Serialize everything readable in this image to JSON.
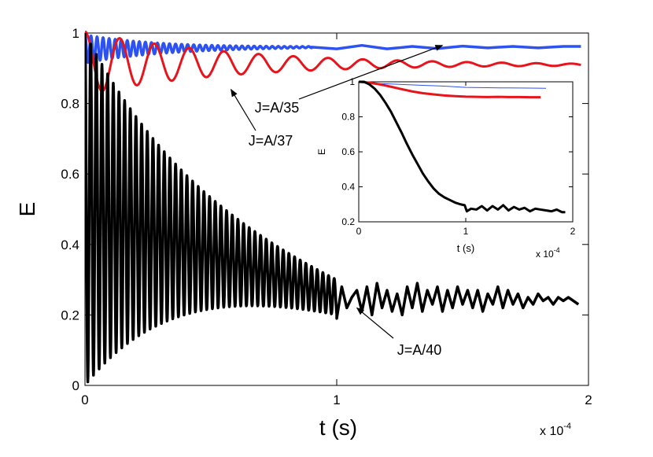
{
  "chart_data": [
    {
      "type": "line",
      "title": "",
      "xlabel": "t (s)",
      "ylabel": "E",
      "x_multiplier": "x 10",
      "x_multiplier_exp": "-4",
      "xlim": [
        0,
        2
      ],
      "ylim": [
        0,
        1
      ],
      "x_ticks": [
        "0",
        "1",
        "2"
      ],
      "y_ticks": [
        "0",
        "0.2",
        "0.4",
        "0.6",
        "0.8",
        "1"
      ],
      "grid": false,
      "series": [
        {
          "name": "J=A/35",
          "color": "#2d52f0",
          "oscillation": {
            "x_start": 0,
            "x_end": 0.9,
            "period": 0.024,
            "center_start": 0.955,
            "center_end": 0.96,
            "amp_start": 0.04,
            "amp_end": 0.002
          },
          "x": [
            0.9,
            1.0,
            1.1,
            1.2,
            1.3,
            1.4,
            1.5,
            1.6,
            1.7,
            1.8,
            1.9,
            1.97
          ],
          "values": [
            0.96,
            0.955,
            0.965,
            0.955,
            0.962,
            0.956,
            0.963,
            0.958,
            0.962,
            0.958,
            0.962,
            0.962
          ]
        },
        {
          "name": "J=A/37",
          "color": "#e8141c",
          "oscillation": {
            "x_start": 0,
            "x_end": 1.97,
            "period": 0.138,
            "center_start": 0.915,
            "center_end": 0.91,
            "amp_start": 0.09,
            "amp_end": 0.003
          },
          "x": [],
          "values": []
        },
        {
          "name": "J=A/40",
          "color": "#000000",
          "oscillation": {
            "x_start": 0,
            "x_end": 1.0,
            "period": 0.0225,
            "center_start": 0.5,
            "center_end": 0.25,
            "amp_start": 0.5,
            "amp_end": 0.05
          },
          "x": [
            1.0,
            1.02,
            1.04,
            1.06,
            1.08,
            1.1,
            1.12,
            1.14,
            1.16,
            1.18,
            1.2,
            1.22,
            1.24,
            1.26,
            1.28,
            1.3,
            1.32,
            1.34,
            1.36,
            1.38,
            1.4,
            1.42,
            1.44,
            1.46,
            1.48,
            1.5,
            1.52,
            1.54,
            1.56,
            1.58,
            1.6,
            1.62,
            1.64,
            1.66,
            1.68,
            1.7,
            1.72,
            1.74,
            1.76,
            1.78,
            1.8,
            1.82,
            1.84,
            1.86,
            1.88,
            1.9,
            1.92,
            1.94,
            1.96
          ],
          "values": [
            0.19,
            0.28,
            0.22,
            0.25,
            0.27,
            0.21,
            0.28,
            0.2,
            0.29,
            0.22,
            0.27,
            0.21,
            0.26,
            0.2,
            0.28,
            0.22,
            0.29,
            0.21,
            0.27,
            0.23,
            0.28,
            0.21,
            0.27,
            0.22,
            0.28,
            0.23,
            0.27,
            0.22,
            0.27,
            0.21,
            0.26,
            0.23,
            0.28,
            0.22,
            0.27,
            0.23,
            0.26,
            0.22,
            0.25,
            0.23,
            0.26,
            0.24,
            0.25,
            0.23,
            0.25,
            0.24,
            0.25,
            0.24,
            0.23
          ]
        }
      ],
      "annotations": [
        {
          "text": "J=A/35",
          "arrow_to": [
            1.42,
            0.965
          ]
        },
        {
          "text": "J=A/37",
          "arrow_to": [
            0.58,
            0.84
          ]
        },
        {
          "text": "J=A/40",
          "arrow_to": [
            1.08,
            0.22
          ]
        }
      ]
    },
    {
      "type": "line",
      "title": "",
      "xlabel": "t (s)",
      "ylabel": "E",
      "x_multiplier": "x 10",
      "x_multiplier_exp": "-4",
      "xlim": [
        0,
        2
      ],
      "ylim": [
        0.2,
        1
      ],
      "x_ticks": [
        "0",
        "1",
        "2"
      ],
      "y_ticks": [
        "0.2",
        "0.4",
        "0.6",
        "0.8",
        "1"
      ],
      "grid": false,
      "series": [
        {
          "color": "#2d52f0",
          "x": [
            0,
            0.1,
            0.2,
            0.4,
            0.6,
            0.8,
            1.0,
            1.2,
            1.4,
            1.6,
            1.75
          ],
          "values": [
            1.0,
            0.995,
            0.99,
            0.985,
            0.98,
            0.975,
            0.968,
            0.966,
            0.965,
            0.964,
            0.963
          ]
        },
        {
          "color": "#e8141c",
          "x": [
            0,
            0.1,
            0.2,
            0.3,
            0.4,
            0.5,
            0.6,
            0.7,
            0.8,
            0.9,
            1.0,
            1.1,
            1.2,
            1.3,
            1.4,
            1.5,
            1.6,
            1.7
          ],
          "values": [
            1.0,
            0.995,
            0.985,
            0.972,
            0.958,
            0.945,
            0.935,
            0.928,
            0.922,
            0.918,
            0.915,
            0.914,
            0.913,
            0.914,
            0.913,
            0.913,
            0.912,
            0.912
          ]
        },
        {
          "color": "#000000",
          "x": [
            0,
            0.05,
            0.1,
            0.15,
            0.2,
            0.25,
            0.3,
            0.35,
            0.4,
            0.45,
            0.5,
            0.55,
            0.6,
            0.65,
            0.7,
            0.75,
            0.8,
            0.85,
            0.9,
            0.95,
            0.99,
            1.01,
            1.05,
            1.1,
            1.15,
            1.2,
            1.25,
            1.3,
            1.35,
            1.4,
            1.45,
            1.5,
            1.55,
            1.6,
            1.65,
            1.7,
            1.75,
            1.8,
            1.85,
            1.9,
            1.93
          ],
          "values": [
            1.0,
            1.0,
            0.985,
            0.96,
            0.925,
            0.88,
            0.83,
            0.77,
            0.71,
            0.645,
            0.585,
            0.53,
            0.475,
            0.43,
            0.39,
            0.36,
            0.34,
            0.325,
            0.31,
            0.3,
            0.295,
            0.26,
            0.275,
            0.27,
            0.29,
            0.265,
            0.29,
            0.27,
            0.295,
            0.265,
            0.285,
            0.27,
            0.28,
            0.26,
            0.275,
            0.27,
            0.265,
            0.26,
            0.27,
            0.255,
            0.255
          ]
        }
      ]
    }
  ]
}
